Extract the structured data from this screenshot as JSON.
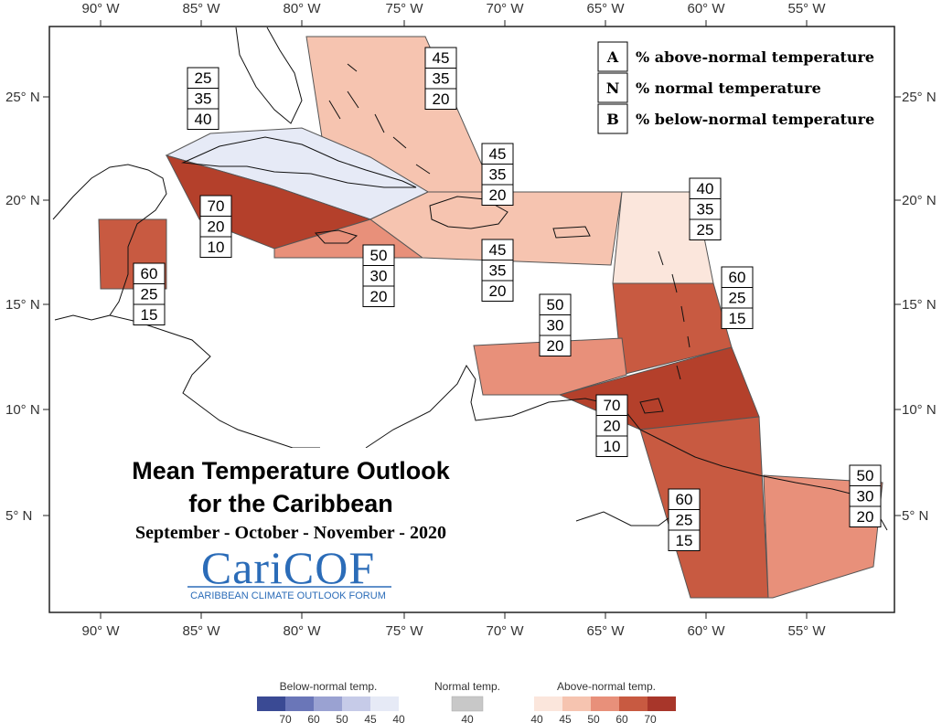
{
  "map": {
    "lon_ticks": [
      "90° W",
      "85° W",
      "80° W",
      "75° W",
      "70° W",
      "65° W",
      "60° W",
      "55° W"
    ],
    "lat_ticks": [
      "25° N",
      "20° N",
      "15° N",
      "10° N",
      "5° N"
    ]
  },
  "legend": {
    "rows": [
      {
        "letter": "A",
        "text": "% above-normal temperature"
      },
      {
        "letter": "N",
        "text": "% normal temperature"
      },
      {
        "letter": "B",
        "text": "% below-normal temperature"
      }
    ]
  },
  "regions": [
    {
      "id": "bahamas",
      "values": [
        "45",
        "35",
        "20"
      ],
      "color": "#f6c4b0"
    },
    {
      "id": "cuba",
      "values": [
        "25",
        "35",
        "40"
      ],
      "color": "#e6eaf6"
    },
    {
      "id": "cayman-west",
      "values": [
        "70",
        "20",
        "10"
      ],
      "color": "#b4402b"
    },
    {
      "id": "belize",
      "values": [
        "60",
        "25",
        "15"
      ],
      "color": "#c85a41"
    },
    {
      "id": "jamaica",
      "values": [
        "50",
        "30",
        "20"
      ],
      "color": "#e8907a"
    },
    {
      "id": "turks",
      "values": [
        "45",
        "35",
        "20"
      ],
      "color": "#f6c4b0"
    },
    {
      "id": "hispaniola-pr",
      "values": [
        "45",
        "35",
        "20"
      ],
      "color": "#f6c4b0"
    },
    {
      "id": "northern-leewards",
      "values": [
        "40",
        "35",
        "25"
      ],
      "color": "#fbe6dc"
    },
    {
      "id": "windwards",
      "values": [
        "60",
        "25",
        "15"
      ],
      "color": "#c85a41"
    },
    {
      "id": "abc-islands",
      "values": [
        "50",
        "30",
        "20"
      ],
      "color": "#e8907a"
    },
    {
      "id": "trinidad",
      "values": [
        "70",
        "20",
        "10"
      ],
      "color": "#b4402b"
    },
    {
      "id": "guyana",
      "values": [
        "60",
        "25",
        "15"
      ],
      "color": "#c85a41"
    },
    {
      "id": "suriname-fg",
      "values": [
        "50",
        "30",
        "20"
      ],
      "color": "#e8907a"
    }
  ],
  "title": {
    "line1": "Mean Temperature Outlook",
    "line2": "for the Caribbean",
    "line3": "September - October - November - 2020"
  },
  "logo": {
    "main": "CariCOF",
    "sub": "CARIBBEAN CLIMATE OUTLOOK FORUM"
  },
  "colorbar": {
    "below_label": "Below-normal temp.",
    "normal_label": "Normal temp.",
    "above_label": "Above-normal temp.",
    "below_ticks": [
      "70",
      "60",
      "50",
      "45",
      "40"
    ],
    "normal_ticks": [
      "40"
    ],
    "above_ticks": [
      "40",
      "45",
      "50",
      "60",
      "70"
    ],
    "below_colors": [
      "#3a4a94",
      "#6a76b8",
      "#9aa2d2",
      "#c6cbe8",
      "#e6eaf6"
    ],
    "normal_color": "#c8c8c8",
    "above_colors": [
      "#fbe6dc",
      "#f6c4b0",
      "#e8907a",
      "#c85a41",
      "#a8362a"
    ]
  }
}
